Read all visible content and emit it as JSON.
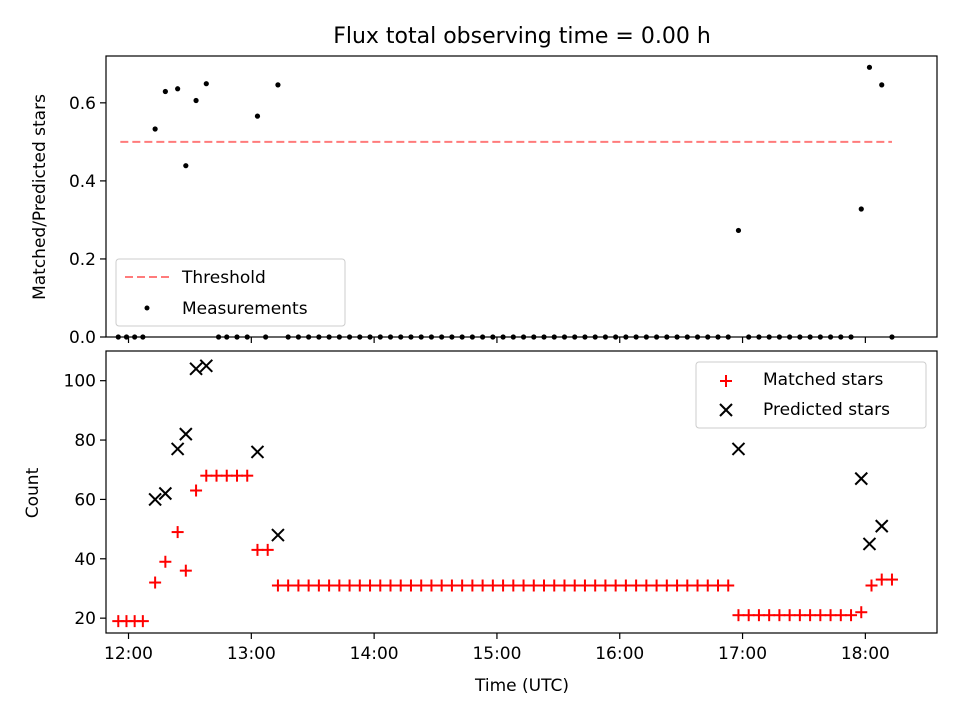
{
  "title": "Flux total observing time = 0.00 h",
  "chart_data": [
    {
      "type": "scatter",
      "ylabel": "Matched/Predicted stars",
      "xlabel": "",
      "ylim": [
        0,
        0.72
      ],
      "xlim": [
        "11:49",
        "18:35"
      ],
      "yticks": [
        "0.0",
        "0.2",
        "0.4",
        "0.6"
      ],
      "ytick_values": [
        0,
        0.2,
        0.4,
        0.6
      ],
      "legend_position": "lower-left",
      "threshold": {
        "name": "Threshold",
        "value": 0.5,
        "x_from": "11:56",
        "x_to": "18:13",
        "color": "#ff7b7b"
      },
      "measurements": {
        "name": "Measurements",
        "color": "#000000",
        "points": [
          [
            "11:55",
            0
          ],
          [
            "11:59",
            0
          ],
          [
            "12:03",
            0
          ],
          [
            "12:07",
            0
          ],
          [
            "12:13",
            0.533
          ],
          [
            "12:18",
            0.629
          ],
          [
            "12:24",
            0.636
          ],
          [
            "12:28",
            0.439
          ],
          [
            "12:33",
            0.606
          ],
          [
            "12:38",
            0.649
          ],
          [
            "12:44",
            0
          ],
          [
            "12:48",
            0
          ],
          [
            "12:53",
            0
          ],
          [
            "12:58",
            0
          ],
          [
            "13:03",
            0.566
          ],
          [
            "13:07",
            0
          ],
          [
            "13:13",
            0.646
          ],
          [
            "13:18",
            0
          ],
          [
            "13:23",
            0
          ],
          [
            "13:28",
            0
          ],
          [
            "13:33",
            0
          ],
          [
            "13:38",
            0
          ],
          [
            "13:43",
            0
          ],
          [
            "13:48",
            0
          ],
          [
            "13:53",
            0
          ],
          [
            "13:58",
            0
          ],
          [
            "14:03",
            0
          ],
          [
            "14:08",
            0
          ],
          [
            "14:13",
            0
          ],
          [
            "14:18",
            0
          ],
          [
            "14:23",
            0
          ],
          [
            "14:28",
            0
          ],
          [
            "14:33",
            0
          ],
          [
            "14:38",
            0
          ],
          [
            "14:43",
            0
          ],
          [
            "14:48",
            0
          ],
          [
            "14:53",
            0
          ],
          [
            "14:58",
            0
          ],
          [
            "15:03",
            0
          ],
          [
            "15:08",
            0
          ],
          [
            "15:13",
            0
          ],
          [
            "15:18",
            0
          ],
          [
            "15:23",
            0
          ],
          [
            "15:28",
            0
          ],
          [
            "15:33",
            0
          ],
          [
            "15:38",
            0
          ],
          [
            "15:43",
            0
          ],
          [
            "15:48",
            0
          ],
          [
            "15:53",
            0
          ],
          [
            "15:58",
            0
          ],
          [
            "16:03",
            0
          ],
          [
            "16:08",
            0
          ],
          [
            "16:13",
            0
          ],
          [
            "16:18",
            0
          ],
          [
            "16:23",
            0
          ],
          [
            "16:28",
            0
          ],
          [
            "16:33",
            0
          ],
          [
            "16:38",
            0
          ],
          [
            "16:43",
            0
          ],
          [
            "16:48",
            0
          ],
          [
            "16:53",
            0
          ],
          [
            "16:58",
            0.273
          ],
          [
            "17:03",
            0
          ],
          [
            "17:08",
            0
          ],
          [
            "17:13",
            0
          ],
          [
            "17:18",
            0
          ],
          [
            "17:23",
            0
          ],
          [
            "17:28",
            0
          ],
          [
            "17:33",
            0
          ],
          [
            "17:38",
            0
          ],
          [
            "17:43",
            0
          ],
          [
            "17:48",
            0
          ],
          [
            "17:53",
            0
          ],
          [
            "17:58",
            0.328
          ],
          [
            "18:02",
            0.691
          ],
          [
            "18:08",
            0.646
          ],
          [
            "18:13",
            0
          ]
        ]
      }
    },
    {
      "type": "scatter",
      "ylabel": "Count",
      "xlabel": "Time (UTC)",
      "ylim": [
        15,
        110
      ],
      "xlim": [
        "11:49",
        "18:35"
      ],
      "yticks": [
        "20",
        "40",
        "60",
        "80",
        "100"
      ],
      "ytick_values": [
        20,
        40,
        60,
        80,
        100
      ],
      "xticks": [
        "12:00",
        "13:00",
        "14:00",
        "15:00",
        "16:00",
        "17:00",
        "18:00"
      ],
      "legend_position": "top-right",
      "series": [
        {
          "name": "Matched stars",
          "marker": "plus",
          "color": "#ff0000",
          "points": [
            [
              "11:55",
              19
            ],
            [
              "11:59",
              19
            ],
            [
              "12:03",
              19
            ],
            [
              "12:07",
              19
            ],
            [
              "12:13",
              32
            ],
            [
              "12:18",
              39
            ],
            [
              "12:24",
              49
            ],
            [
              "12:28",
              36
            ],
            [
              "12:33",
              63
            ],
            [
              "12:38",
              68
            ],
            [
              "12:43",
              68
            ],
            [
              "12:48",
              68
            ],
            [
              "12:53",
              68
            ],
            [
              "12:58",
              68
            ],
            [
              "13:03",
              43
            ],
            [
              "13:08",
              43
            ],
            [
              "13:13",
              31
            ],
            [
              "13:18",
              31
            ],
            [
              "13:23",
              31
            ],
            [
              "13:28",
              31
            ],
            [
              "13:33",
              31
            ],
            [
              "13:38",
              31
            ],
            [
              "13:43",
              31
            ],
            [
              "13:48",
              31
            ],
            [
              "13:53",
              31
            ],
            [
              "13:58",
              31
            ],
            [
              "14:03",
              31
            ],
            [
              "14:08",
              31
            ],
            [
              "14:13",
              31
            ],
            [
              "14:18",
              31
            ],
            [
              "14:23",
              31
            ],
            [
              "14:28",
              31
            ],
            [
              "14:33",
              31
            ],
            [
              "14:38",
              31
            ],
            [
              "14:43",
              31
            ],
            [
              "14:48",
              31
            ],
            [
              "14:53",
              31
            ],
            [
              "14:58",
              31
            ],
            [
              "15:03",
              31
            ],
            [
              "15:08",
              31
            ],
            [
              "15:13",
              31
            ],
            [
              "15:18",
              31
            ],
            [
              "15:23",
              31
            ],
            [
              "15:28",
              31
            ],
            [
              "15:33",
              31
            ],
            [
              "15:38",
              31
            ],
            [
              "15:43",
              31
            ],
            [
              "15:48",
              31
            ],
            [
              "15:53",
              31
            ],
            [
              "15:58",
              31
            ],
            [
              "16:03",
              31
            ],
            [
              "16:08",
              31
            ],
            [
              "16:13",
              31
            ],
            [
              "16:18",
              31
            ],
            [
              "16:23",
              31
            ],
            [
              "16:28",
              31
            ],
            [
              "16:33",
              31
            ],
            [
              "16:38",
              31
            ],
            [
              "16:43",
              31
            ],
            [
              "16:48",
              31
            ],
            [
              "16:53",
              31
            ],
            [
              "16:58",
              21
            ],
            [
              "17:03",
              21
            ],
            [
              "17:08",
              21
            ],
            [
              "17:13",
              21
            ],
            [
              "17:18",
              21
            ],
            [
              "17:23",
              21
            ],
            [
              "17:28",
              21
            ],
            [
              "17:33",
              21
            ],
            [
              "17:38",
              21
            ],
            [
              "17:43",
              21
            ],
            [
              "17:48",
              21
            ],
            [
              "17:53",
              21
            ],
            [
              "17:58",
              22
            ],
            [
              "18:03",
              31
            ],
            [
              "18:08",
              33
            ],
            [
              "18:13",
              33
            ]
          ]
        },
        {
          "name": "Predicted stars",
          "marker": "x",
          "color": "#000000",
          "points": [
            [
              "12:13",
              60
            ],
            [
              "12:18",
              62
            ],
            [
              "12:24",
              77
            ],
            [
              "12:28",
              82
            ],
            [
              "12:33",
              104
            ],
            [
              "12:38",
              105
            ],
            [
              "13:03",
              76
            ],
            [
              "13:13",
              48
            ],
            [
              "16:58",
              77
            ],
            [
              "17:58",
              67
            ],
            [
              "18:02",
              45
            ],
            [
              "18:08",
              51
            ]
          ]
        }
      ]
    }
  ]
}
